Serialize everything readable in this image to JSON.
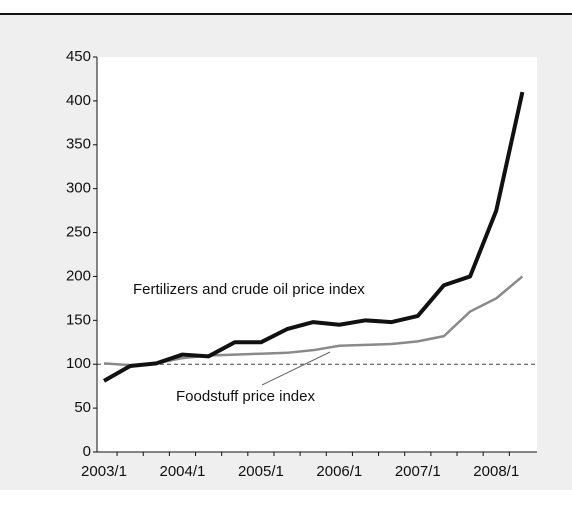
{
  "chart_data": {
    "type": "line",
    "categories": [
      "2003/1",
      null,
      null,
      "2004/1",
      null,
      null,
      "2005/1",
      null,
      null,
      "2006/1",
      null,
      null,
      "2007/1",
      null,
      null,
      "2008/1",
      null
    ],
    "series": [
      {
        "name": "Fertilizers and crude oil price index",
        "color": "#111111",
        "values": [
          81,
          98,
          101,
          111,
          109,
          125,
          125,
          140,
          148,
          145,
          150,
          148,
          155,
          190,
          200,
          275,
          410
        ]
      },
      {
        "name": "Foodstuff price index",
        "color": "#8a8a8a",
        "values": [
          101,
          99,
          101,
          107,
          110,
          111,
          112,
          113,
          116,
          121,
          122,
          123,
          126,
          132,
          160,
          175,
          200
        ]
      }
    ],
    "ylim": [
      0,
      450
    ],
    "yticks": [
      0,
      50,
      100,
      150,
      200,
      250,
      300,
      350,
      400,
      450
    ],
    "reference_line": 100
  }
}
